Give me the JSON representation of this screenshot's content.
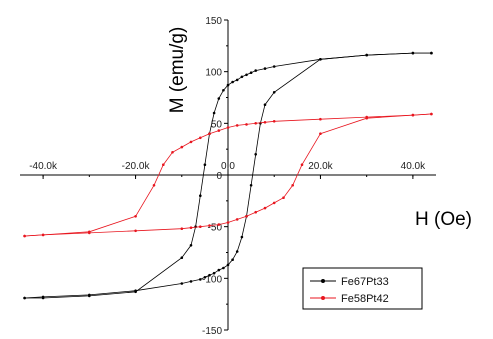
{
  "chart_data": {
    "type": "line",
    "xlabel": "H (Oe)",
    "ylabel": "M (emu/g)",
    "xlim": [
      -45,
      45
    ],
    "ylim": [
      -150,
      150
    ],
    "x_unit": "kOe",
    "x_ticks": [
      -40,
      -20,
      0,
      20,
      40
    ],
    "x_tick_labels": [
      "-40.0k",
      "-20.0k",
      "0.0",
      "20.0k",
      "40.0k"
    ],
    "y_ticks": [
      -150,
      -100,
      -50,
      0,
      50,
      100,
      150
    ],
    "y_tick_labels": [
      "-150",
      "-100",
      "-50",
      "0",
      "50",
      "100",
      "150"
    ],
    "grid": false,
    "legend_position": "bottom-right",
    "series": [
      {
        "name": "Fe67Pt33",
        "color": "#000000",
        "segments": [
          {
            "x": [
              44,
              40,
              30,
              20,
              10,
              8,
              6,
              5,
              4,
              3,
              2,
              1,
              0,
              -1,
              -2,
              -3,
              -4,
              -5,
              -6,
              -7,
              -8,
              -10,
              -20,
              -30,
              -40,
              -44
            ],
            "y": [
              118,
              118,
              116,
              112,
              105,
              103,
              101,
              99,
              97,
              95,
              92,
              90,
              87,
              82,
              74,
              60,
              40,
              10,
              -20,
              -50,
              -68,
              -80,
              -113,
              -117,
              -119,
              -119
            ]
          },
          {
            "x": [
              -44,
              -40,
              -30,
              -20,
              -10,
              -8,
              -6,
              -5,
              -4,
              -3,
              -2,
              -1,
              0,
              1,
              2,
              3,
              4,
              5,
              6,
              7,
              8,
              10,
              20,
              30,
              40,
              44
            ],
            "y": [
              -119,
              -118,
              -116,
              -112,
              -105,
              -103,
              -101,
              -99,
              -97,
              -95,
              -92,
              -90,
              -87,
              -82,
              -74,
              -60,
              -40,
              -10,
              20,
              50,
              68,
              80,
              112,
              116,
              118,
              118
            ]
          }
        ]
      },
      {
        "name": "Fe58Pt42",
        "color": "#e8161f",
        "segments": [
          {
            "x": [
              44,
              40,
              30,
              20,
              10,
              8,
              6,
              4,
              2,
              0,
              -2,
              -4,
              -6,
              -8,
              -10,
              -12,
              -14,
              -16,
              -20,
              -30,
              -40,
              -44
            ],
            "y": [
              59,
              58,
              56,
              54,
              52,
              51,
              50,
              49,
              48,
              46,
              43,
              40,
              36,
              32,
              27,
              22,
              10,
              -10,
              -40,
              -55,
              -58,
              -59
            ]
          },
          {
            "x": [
              -44,
              -40,
              -30,
              -20,
              -10,
              -8,
              -6,
              -4,
              -2,
              0,
              2,
              4,
              6,
              8,
              10,
              12,
              14,
              16,
              20,
              30,
              40,
              44
            ],
            "y": [
              -59,
              -58,
              -56,
              -54,
              -52,
              -51,
              -50,
              -49,
              -48,
              -46,
              -43,
              -40,
              -36,
              -32,
              -27,
              -22,
              -10,
              10,
              40,
              55,
              58,
              59
            ]
          }
        ]
      }
    ]
  }
}
